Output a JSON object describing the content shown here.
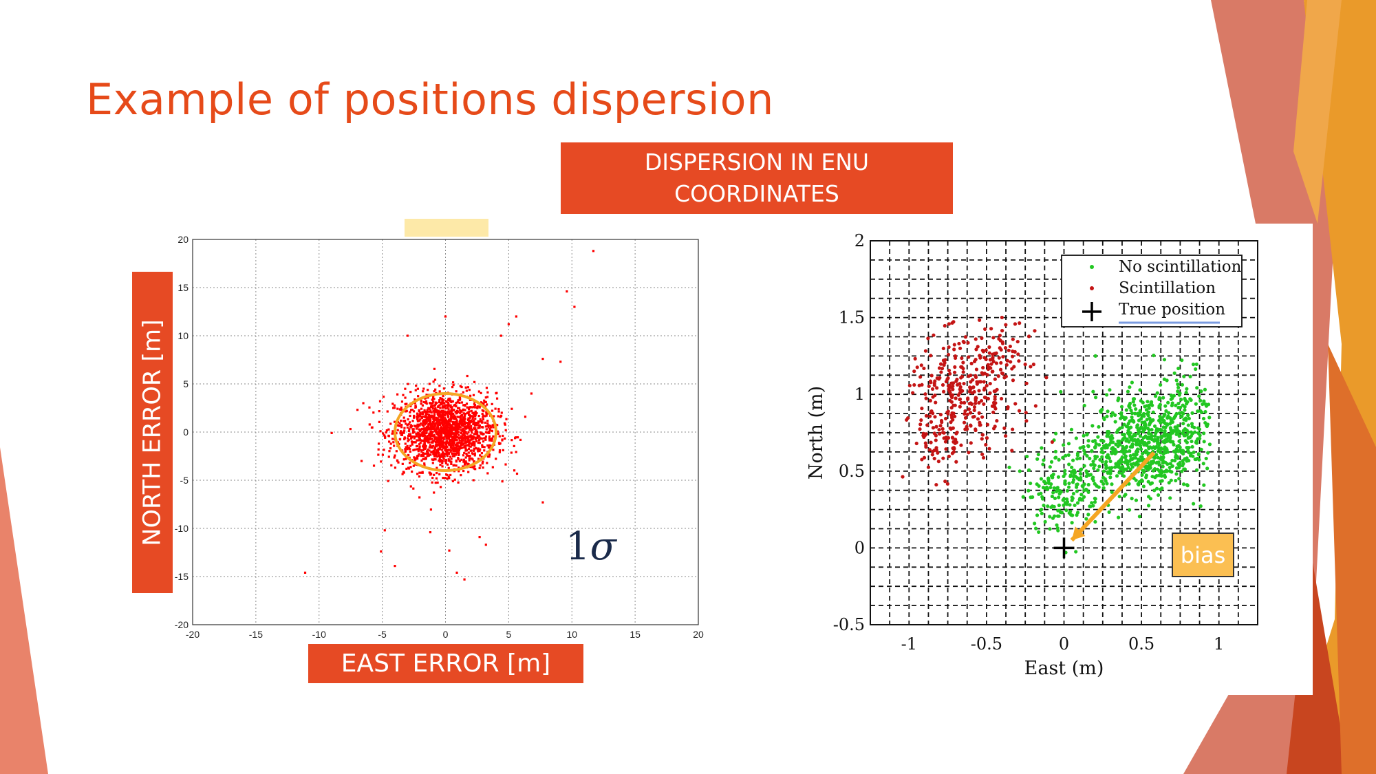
{
  "slide": {
    "title": "Example of positions dispersion",
    "banner_top": "DISPERSION IN ENU COORDINATES",
    "east_label": "EAST ERROR [m]",
    "north_label": "NORTH ERROR [m]",
    "sigma_numeral": "1",
    "sigma_symbol": "σ",
    "bias_label": "bias",
    "colors": {
      "accent": "#e64a24",
      "title": "#e64a19",
      "circle": "#f5a623",
      "bias_box": "#fbbf52"
    }
  },
  "chart_data": [
    {
      "type": "scatter",
      "title": "",
      "xlabel": "EAST ERROR [m]",
      "ylabel": "NORTH ERROR [m]",
      "xlim": [
        -20,
        20
      ],
      "ylim": [
        -20,
        20
      ],
      "x_ticks": [
        "-20",
        "-15",
        "-10",
        "-5",
        "0",
        "5",
        "10",
        "15",
        "20"
      ],
      "y_ticks": [
        "-20",
        "-15",
        "-10",
        "-5",
        "0",
        "5",
        "10",
        "15",
        "20"
      ],
      "grid": true,
      "series": [
        {
          "color": "#ff0000",
          "cluster": {
            "center": [
              0,
              0
            ],
            "std": [
              2.0,
              2.0
            ],
            "count": 1800
          },
          "outliers": [
            [
              11.7,
              18.8
            ],
            [
              9.6,
              14.6
            ],
            [
              10.2,
              13.0
            ],
            [
              5.6,
              12.0
            ],
            [
              5.0,
              11.2
            ],
            [
              4.4,
              10.0
            ],
            [
              7.7,
              7.6
            ],
            [
              9.1,
              7.3
            ],
            [
              -3.0,
              10.0
            ],
            [
              0.0,
              12.0
            ],
            [
              -9.0,
              -0.1
            ],
            [
              -11.1,
              -14.6
            ],
            [
              -5.1,
              -12.4
            ],
            [
              -4.8,
              -10.2
            ],
            [
              -4.0,
              -13.9
            ],
            [
              1.5,
              -15.3
            ],
            [
              0.9,
              -14.6
            ],
            [
              0.3,
              -12.3
            ],
            [
              3.2,
              -11.7
            ],
            [
              2.7,
              -10.9
            ],
            [
              7.7,
              -7.3
            ],
            [
              -1.2,
              -10.4
            ],
            [
              6.8,
              4.0
            ],
            [
              -6.5,
              3.0
            ]
          ]
        }
      ],
      "annotations": [
        {
          "type": "circle",
          "center": [
            0,
            0
          ],
          "radius": 4,
          "label": "1σ",
          "color": "#f5a623"
        }
      ]
    },
    {
      "type": "scatter",
      "title": "",
      "xlabel": "East (m)",
      "ylabel": "North (m)",
      "xlim": [
        -1.25,
        1.25
      ],
      "ylim": [
        -0.5,
        2
      ],
      "x_ticks": [
        "-1",
        "-0.5",
        "0",
        "0.5",
        "1"
      ],
      "y_ticks": [
        "-0.5",
        "0",
        "0.5",
        "1",
        "1.5",
        "2"
      ],
      "grid": true,
      "legend": {
        "position": "top-right",
        "entries": [
          "No scintillation",
          "Scintillation",
          "True position"
        ]
      },
      "series": [
        {
          "name": "No scintillation",
          "color": "#22c722",
          "clusters": [
            {
              "center": [
                0.52,
                0.68
              ],
              "std": [
                0.16,
                0.16
              ],
              "count": 600
            },
            {
              "center": [
                0.0,
                0.4
              ],
              "std": [
                0.12,
                0.14
              ],
              "count": 180
            },
            {
              "center": [
                0.78,
                0.85
              ],
              "std": [
                0.09,
                0.18
              ],
              "count": 130
            },
            {
              "center": [
                0.25,
                0.55
              ],
              "std": [
                0.1,
                0.1
              ],
              "count": 90
            }
          ]
        },
        {
          "name": "Scintillation",
          "color": "#c41414",
          "clusters": [
            {
              "center": [
                -0.65,
                1.0
              ],
              "std": [
                0.18,
                0.18
              ],
              "count": 280
            },
            {
              "center": [
                -0.4,
                1.25
              ],
              "std": [
                0.09,
                0.12
              ],
              "count": 60
            },
            {
              "center": [
                -0.8,
                0.7
              ],
              "std": [
                0.1,
                0.12
              ],
              "count": 60
            }
          ]
        },
        {
          "name": "True position",
          "color": "#000000",
          "points": [
            [
              0,
              0
            ]
          ]
        }
      ],
      "annotations": [
        {
          "type": "arrow",
          "from": [
            0.58,
            0.62
          ],
          "to": [
            0.05,
            0.05
          ],
          "color": "#f5a623",
          "label": "bias"
        }
      ]
    }
  ]
}
